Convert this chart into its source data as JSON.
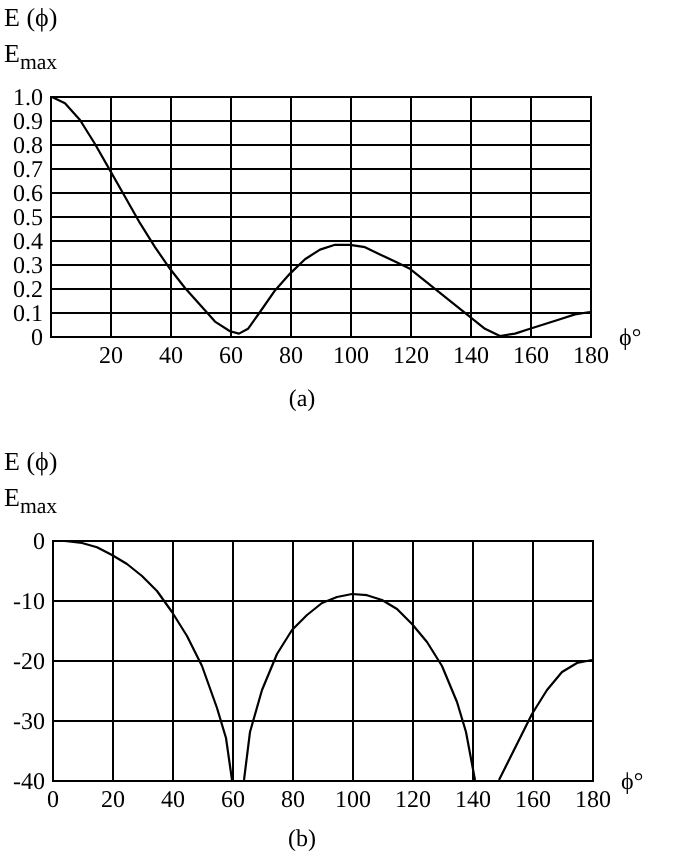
{
  "chart_data": [
    {
      "type": "line",
      "ylabel": "E (ϕ)\nE$_{max}$",
      "xlabel": "ϕ°",
      "annotations": [
        "(a)"
      ],
      "x": [
        0,
        5,
        10,
        15,
        20,
        25,
        30,
        35,
        40,
        45,
        50,
        55,
        60,
        63,
        66,
        70,
        75,
        80,
        85,
        90,
        95,
        100,
        105,
        110,
        115,
        120,
        125,
        130,
        135,
        140,
        145,
        150,
        155,
        160,
        165,
        170,
        175,
        180
      ],
      "series": [
        {
          "color": "#000000",
          "values": [
            1.0,
            0.97,
            0.9,
            0.8,
            0.69,
            0.58,
            0.47,
            0.37,
            0.28,
            0.2,
            0.13,
            0.06,
            0.02,
            0.01,
            0.03,
            0.1,
            0.19,
            0.26,
            0.32,
            0.36,
            0.38,
            0.38,
            0.37,
            0.34,
            0.31,
            0.28,
            0.23,
            0.18,
            0.13,
            0.08,
            0.03,
            0.0,
            0.01,
            0.03,
            0.05,
            0.07,
            0.09,
            0.1
          ]
        }
      ],
      "xlim": [
        0,
        180
      ],
      "xticks": [
        20,
        40,
        60,
        80,
        100,
        120,
        140,
        160,
        180
      ],
      "ylim": [
        0,
        1
      ],
      "yticks": [
        0,
        0.1,
        0.2,
        0.3,
        0.4,
        0.5,
        0.6,
        0.7,
        0.8,
        0.9,
        {
          "value": 1,
          "label": "1.0"
        }
      ],
      "grid": true
    },
    {
      "type": "line",
      "ylabel": "E (ϕ)\nE$_{max}$",
      "xlabel": "ϕ°",
      "annotations": [
        "(b)"
      ],
      "x": [
        0,
        5,
        10,
        15,
        20,
        25,
        30,
        35,
        40,
        45,
        50,
        55,
        58,
        60,
        62,
        64,
        66,
        70,
        75,
        80,
        85,
        90,
        95,
        100,
        105,
        110,
        115,
        120,
        125,
        130,
        135,
        138,
        141,
        145,
        149,
        152,
        155,
        160,
        165,
        170,
        175,
        180
      ],
      "series": [
        {
          "color": "#000000",
          "values": [
            0,
            -0.2,
            -0.5,
            -1.2,
            -2.5,
            -4,
            -6,
            -8.5,
            -12,
            -16,
            -21,
            -28,
            -33,
            -40,
            null,
            -40,
            -32,
            -25,
            -19,
            -15,
            -12.5,
            -10.5,
            -9.5,
            -9,
            -9.2,
            -10,
            -11.5,
            -14,
            -17,
            -21,
            -27,
            -32,
            -40,
            null,
            -40,
            -37,
            -34,
            -29,
            -25,
            -22,
            -20.5,
            -20
          ]
        }
      ],
      "xlim": [
        0,
        180
      ],
      "xticks": [
        0,
        20,
        40,
        60,
        80,
        100,
        120,
        140,
        160,
        180
      ],
      "ylim": [
        -40,
        0
      ],
      "yticks": [
        -40,
        -30,
        -20,
        -10,
        0
      ],
      "grid": true
    }
  ]
}
